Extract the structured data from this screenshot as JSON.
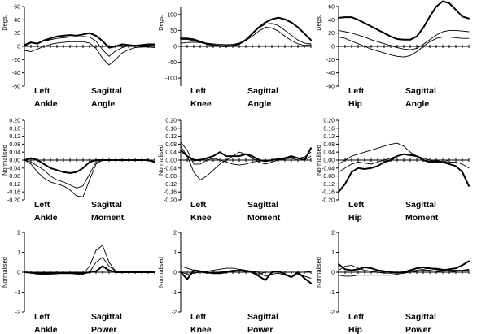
{
  "chart_data": [
    {
      "type": "line",
      "name_left": "Left",
      "name_joint": "Ankle",
      "name_plane": "Sagittal",
      "name_measure": "Angle",
      "ylabel": "Degs.",
      "yticks": [
        "60",
        "40",
        "20",
        "0",
        "-20",
        "-40",
        "-60"
      ],
      "ylim": [
        -60,
        60
      ],
      "x": [
        0,
        5,
        10,
        15,
        20,
        25,
        30,
        35,
        40,
        45,
        50,
        55,
        60,
        65,
        70,
        75,
        80,
        85,
        90,
        95,
        100
      ],
      "series": [
        {
          "values": [
            2,
            6,
            4,
            9,
            12,
            15,
            16,
            17,
            16,
            18,
            20,
            16,
            8,
            -2,
            0,
            3,
            2,
            1,
            2,
            3,
            3
          ],
          "weight": "bold"
        },
        {
          "values": [
            0,
            5,
            5,
            8,
            10,
            12,
            13,
            14,
            14,
            15,
            14,
            8,
            -5,
            -15,
            -7,
            -2,
            1,
            2,
            2,
            2,
            2
          ],
          "weight": "thin"
        },
        {
          "values": [
            -6,
            -8,
            -4,
            0,
            3,
            5,
            6,
            7,
            7,
            7,
            5,
            -3,
            -18,
            -28,
            -20,
            -10,
            -5,
            -2,
            -1,
            -1,
            -2
          ],
          "weight": "thin"
        }
      ]
    },
    {
      "type": "line",
      "name_left": "Left",
      "name_joint": "Knee",
      "name_plane": "Sagittal",
      "name_measure": "Angle",
      "ylabel": "Degs.",
      "yticks": [
        "100",
        "50",
        "0",
        "-50",
        "-100"
      ],
      "ylim": [
        -125,
        125
      ],
      "x": [
        0,
        5,
        10,
        15,
        20,
        25,
        30,
        35,
        40,
        45,
        50,
        55,
        60,
        65,
        70,
        75,
        80,
        85,
        90,
        95,
        100
      ],
      "series": [
        {
          "values": [
            25,
            25,
            22,
            15,
            8,
            3,
            1,
            0,
            2,
            8,
            20,
            40,
            60,
            75,
            85,
            90,
            85,
            75,
            60,
            40,
            20
          ],
          "weight": "bold"
        },
        {
          "values": [
            22,
            22,
            18,
            12,
            8,
            5,
            3,
            2,
            4,
            10,
            22,
            40,
            58,
            70,
            72,
            65,
            50,
            35,
            20,
            10,
            8
          ],
          "weight": "thin"
        },
        {
          "values": [
            10,
            12,
            13,
            12,
            10,
            8,
            6,
            5,
            6,
            10,
            18,
            32,
            48,
            60,
            58,
            48,
            32,
            18,
            8,
            3,
            5
          ],
          "weight": "thin"
        }
      ]
    },
    {
      "type": "line",
      "name_left": "Left",
      "name_joint": "Hip",
      "name_plane": "Sagittal",
      "name_measure": "Angle",
      "ylabel": "Degs.",
      "yticks": [
        "60",
        "40",
        "20",
        "0",
        "-20",
        "-40",
        "-60"
      ],
      "ylim": [
        -60,
        60
      ],
      "x": [
        0,
        5,
        10,
        15,
        20,
        25,
        30,
        35,
        40,
        45,
        50,
        55,
        60,
        65,
        70,
        75,
        80,
        85,
        90,
        95,
        100
      ],
      "series": [
        {
          "values": [
            43,
            44,
            44,
            40,
            35,
            30,
            25,
            20,
            15,
            11,
            10,
            10,
            15,
            28,
            45,
            60,
            68,
            65,
            55,
            45,
            42
          ],
          "weight": "bold"
        },
        {
          "values": [
            24,
            22,
            20,
            17,
            14,
            10,
            7,
            4,
            1,
            -2,
            -4,
            -5,
            -3,
            3,
            10,
            17,
            22,
            24,
            24,
            23,
            22
          ],
          "weight": "thin"
        },
        {
          "values": [
            14,
            12,
            8,
            4,
            0,
            -4,
            -7,
            -10,
            -13,
            -15,
            -16,
            -14,
            -8,
            0,
            7,
            12,
            14,
            14,
            13,
            12,
            12
          ],
          "weight": "thin"
        }
      ]
    },
    {
      "type": "line",
      "name_left": "Left",
      "name_joint": "Ankle",
      "name_plane": "Sagittal",
      "name_measure": "Moment",
      "ylabel": "Normalised",
      "yticks": [
        "0.20",
        "0.16",
        "0.12",
        "0.08",
        "0.04",
        "0.00",
        "-0.04",
        "-0.08",
        "-0.12",
        "-0.16",
        "-0.20"
      ],
      "ylim": [
        -0.2,
        0.2
      ],
      "x": [
        0,
        5,
        10,
        15,
        20,
        25,
        30,
        35,
        40,
        45,
        50,
        55,
        60,
        65,
        70,
        75,
        80,
        85,
        90,
        95,
        100
      ],
      "series": [
        {
          "values": [
            0.0,
            0.01,
            0.0,
            -0.02,
            -0.04,
            -0.05,
            -0.06,
            -0.065,
            -0.06,
            -0.04,
            -0.01,
            0.0,
            0.0,
            0.0,
            0.0,
            0.0,
            0.0,
            0.0,
            0.0,
            0.0,
            -0.01
          ],
          "weight": "bold"
        },
        {
          "values": [
            0.0,
            -0.01,
            -0.03,
            -0.05,
            -0.08,
            -0.1,
            -0.11,
            -0.125,
            -0.14,
            -0.13,
            -0.07,
            -0.01,
            0.0,
            0.0,
            0.0,
            0.0,
            0.0,
            0.0,
            0.0,
            0.0,
            0.0
          ],
          "weight": "thin"
        },
        {
          "values": [
            0.0,
            -0.02,
            -0.06,
            -0.09,
            -0.11,
            -0.12,
            -0.13,
            -0.15,
            -0.18,
            -0.185,
            -0.1,
            -0.02,
            0.0,
            0.0,
            0.0,
            0.0,
            0.0,
            0.0,
            0.0,
            0.0,
            0.0
          ],
          "weight": "thin"
        }
      ]
    },
    {
      "type": "line",
      "name_left": "Left",
      "name_joint": "Knee",
      "name_plane": "Sagittal",
      "name_measure": "Moment",
      "ylabel": "Normalised",
      "yticks": [
        "0.20",
        "0.16",
        "0.12",
        "0.08",
        "0.04",
        "0.00",
        "-0.04",
        "-0.08",
        "-0.12",
        "-0.16",
        "-0.20"
      ],
      "ylim": [
        -0.2,
        0.2
      ],
      "x": [
        0,
        5,
        10,
        15,
        20,
        25,
        30,
        35,
        40,
        45,
        50,
        55,
        60,
        65,
        70,
        75,
        80,
        85,
        90,
        95,
        100
      ],
      "series": [
        {
          "values": [
            0.05,
            0.02,
            0.0,
            0.0,
            0.01,
            0.02,
            0.04,
            0.02,
            0.02,
            0.02,
            0.03,
            0.02,
            0.0,
            -0.005,
            0.0,
            0.005,
            0.01,
            0.02,
            0.01,
            0.0,
            0.06
          ],
          "weight": "bold"
        },
        {
          "values": [
            0.09,
            0.05,
            -0.02,
            -0.02,
            0.0,
            0.01,
            0.0,
            -0.01,
            -0.02,
            -0.025,
            -0.02,
            -0.01,
            -0.005,
            0.0,
            0.0,
            0.005,
            0.01,
            0.015,
            0.01,
            0.015,
            0.04
          ],
          "weight": "thin"
        },
        {
          "values": [
            0.07,
            0.02,
            -0.06,
            -0.1,
            -0.08,
            -0.05,
            -0.02,
            0.0,
            0.02,
            0.04,
            0.03,
            0.01,
            -0.01,
            -0.02,
            -0.01,
            0.0,
            0.005,
            0.01,
            0.0,
            0.0,
            0.02
          ],
          "weight": "thin"
        }
      ]
    },
    {
      "type": "line",
      "name_left": "Left",
      "name_joint": "Hip",
      "name_plane": "Sagittal",
      "name_measure": "Moment",
      "ylabel": "Normalised",
      "yticks": [
        "0.20",
        "0.16",
        "0.12",
        "0.08",
        "0.04",
        "0.00",
        "-0.04",
        "-0.08",
        "-0.12",
        "-0.16",
        "-0.20"
      ],
      "ylim": [
        -0.2,
        0.2
      ],
      "x": [
        0,
        5,
        10,
        15,
        20,
        25,
        30,
        35,
        40,
        45,
        50,
        55,
        60,
        65,
        70,
        75,
        80,
        85,
        90,
        95,
        100
      ],
      "series": [
        {
          "values": [
            -0.16,
            -0.12,
            -0.06,
            -0.04,
            -0.045,
            -0.04,
            -0.03,
            -0.01,
            0.0,
            0.02,
            0.03,
            0.025,
            0.02,
            0.0,
            -0.01,
            -0.005,
            -0.01,
            -0.02,
            -0.03,
            -0.06,
            -0.13
          ],
          "weight": "bold"
        },
        {
          "values": [
            -0.02,
            0.0,
            0.02,
            0.03,
            0.04,
            0.05,
            0.06,
            0.07,
            0.08,
            0.085,
            0.07,
            0.04,
            0.02,
            0.0,
            -0.01,
            -0.01,
            -0.01,
            0.0,
            0.0,
            0.0,
            0.0
          ],
          "weight": "thin"
        },
        {
          "values": [
            -0.06,
            -0.04,
            -0.02,
            -0.01,
            -0.015,
            -0.02,
            -0.01,
            0.0,
            0.01,
            0.02,
            0.03,
            0.03,
            0.02,
            0.01,
            0.0,
            -0.01,
            -0.01,
            -0.01,
            -0.01,
            -0.02,
            -0.04
          ],
          "weight": "thin"
        }
      ]
    },
    {
      "type": "line",
      "name_left": "Left",
      "name_joint": "Ankle",
      "name_plane": "Sagittal",
      "name_measure": "Power",
      "ylabel": "Normalised",
      "yticks": [
        "2",
        "1",
        "0",
        "-1",
        "-2"
      ],
      "ylim": [
        -2,
        2
      ],
      "x": [
        0,
        5,
        10,
        15,
        20,
        25,
        30,
        35,
        40,
        45,
        50,
        55,
        60,
        65,
        70,
        75,
        80,
        85,
        90,
        95,
        100
      ],
      "series": [
        {
          "values": [
            0.0,
            -0.02,
            -0.05,
            -0.06,
            -0.05,
            -0.04,
            -0.05,
            -0.05,
            -0.05,
            -0.05,
            0.0,
            0.05,
            0.3,
            0.1,
            0.0,
            0.0,
            0.0,
            0.0,
            0.0,
            0.0,
            0.0
          ],
          "weight": "bold"
        },
        {
          "values": [
            0.0,
            -0.05,
            -0.1,
            -0.12,
            -0.1,
            -0.08,
            -0.05,
            -0.05,
            -0.1,
            -0.1,
            0.3,
            1.1,
            1.35,
            0.5,
            0.05,
            0.0,
            0.0,
            0.0,
            0.0,
            0.0,
            0.0
          ],
          "weight": "thin"
        },
        {
          "values": [
            0.0,
            0.0,
            -0.02,
            -0.05,
            -0.05,
            -0.04,
            -0.05,
            -0.05,
            -0.08,
            -0.1,
            0.0,
            0.5,
            0.75,
            0.3,
            0.05,
            0.0,
            0.0,
            0.0,
            0.0,
            0.0,
            0.0
          ],
          "weight": "thin"
        }
      ]
    },
    {
      "type": "line",
      "name_left": "Left",
      "name_joint": "Knee",
      "name_plane": "Sagittal",
      "name_measure": "Power",
      "ylabel": "Normalised",
      "yticks": [
        "2",
        "1",
        "0",
        "-1",
        "-2"
      ],
      "ylim": [
        -2,
        2
      ],
      "x": [
        0,
        5,
        10,
        15,
        20,
        25,
        30,
        35,
        40,
        45,
        50,
        55,
        60,
        65,
        70,
        75,
        80,
        85,
        90,
        95,
        100
      ],
      "series": [
        {
          "values": [
            0.0,
            -0.35,
            0.1,
            0.05,
            0.0,
            -0.05,
            -0.05,
            0.0,
            0.05,
            0.1,
            0.05,
            0.0,
            -0.2,
            -0.4,
            0.0,
            0.05,
            -0.1,
            -0.25,
            0.0,
            -0.3,
            -0.55
          ],
          "weight": "bold"
        },
        {
          "values": [
            0.3,
            0.2,
            0.1,
            0.0,
            -0.05,
            -0.05,
            0.0,
            0.05,
            0.1,
            0.1,
            0.05,
            0.0,
            -0.1,
            0.0,
            0.0,
            0.0,
            0.0,
            0.0,
            0.0,
            0.0,
            0.05
          ],
          "weight": "thin"
        },
        {
          "values": [
            0.0,
            -0.1,
            -0.05,
            0.0,
            0.05,
            0.1,
            0.15,
            0.2,
            0.2,
            0.15,
            0.1,
            0.05,
            0.0,
            -0.2,
            -0.1,
            -0.05,
            -0.15,
            -0.25,
            -0.1,
            -0.2,
            -0.3
          ],
          "weight": "thin"
        }
      ]
    },
    {
      "type": "line",
      "name_left": "Left",
      "name_joint": "Hip",
      "name_plane": "Sagittal",
      "name_measure": "Power",
      "ylabel": "Normalised",
      "yticks": [
        "2",
        "1",
        "0",
        "-1",
        "-2"
      ],
      "ylim": [
        -2,
        2
      ],
      "x": [
        0,
        5,
        10,
        15,
        20,
        25,
        30,
        35,
        40,
        45,
        50,
        55,
        60,
        65,
        70,
        75,
        80,
        85,
        90,
        95,
        100
      ],
      "series": [
        {
          "values": [
            0.4,
            0.15,
            0.1,
            0.15,
            0.25,
            0.2,
            0.1,
            0.05,
            0.0,
            -0.02,
            0.0,
            0.1,
            0.2,
            0.25,
            0.2,
            0.15,
            0.1,
            0.15,
            0.2,
            0.35,
            0.55
          ],
          "weight": "bold"
        },
        {
          "values": [
            0.1,
            0.3,
            0.35,
            0.2,
            0.1,
            0.05,
            0.0,
            -0.05,
            -0.05,
            -0.05,
            0.0,
            0.05,
            0.1,
            0.15,
            0.2,
            0.2,
            0.15,
            0.1,
            0.1,
            0.1,
            0.1
          ],
          "weight": "thin"
        },
        {
          "values": [
            -0.15,
            -0.2,
            -0.2,
            -0.15,
            -0.15,
            -0.15,
            -0.15,
            -0.15,
            -0.15,
            -0.1,
            -0.05,
            0.0,
            0.05,
            0.1,
            0.1,
            0.05,
            0.0,
            0.0,
            0.05,
            0.1,
            0.15
          ],
          "weight": "thin"
        }
      ]
    }
  ]
}
